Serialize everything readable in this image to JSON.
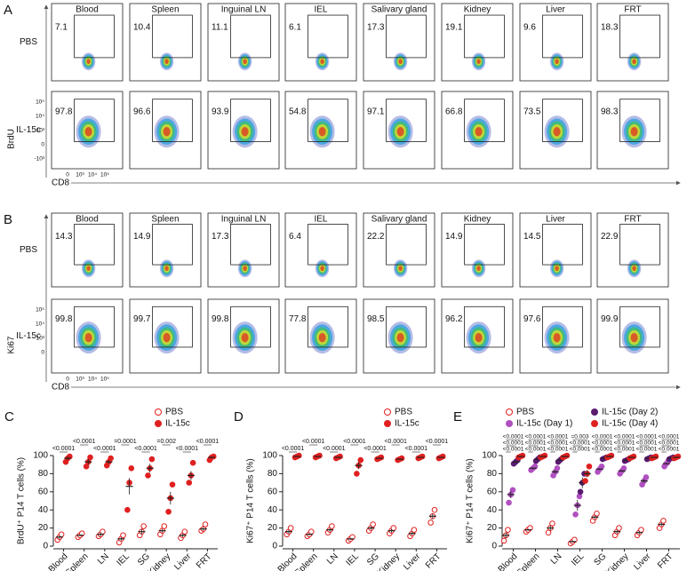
{
  "flow_panels": [
    {
      "label": "A",
      "columns": [
        "Blood",
        "Spleen",
        "Inguinal LN",
        "IEL",
        "Salivary gland",
        "Kidney",
        "Liver",
        "FRT"
      ],
      "rows": [
        "PBS",
        "IL-15c"
      ],
      "y_axis": "BrdU",
      "x_axis": "CD8",
      "gates": [
        [
          7.1,
          10.4,
          11.1,
          6.1,
          17.3,
          19.1,
          9.6,
          18.3
        ],
        [
          97.8,
          96.6,
          93.9,
          54.8,
          97.1,
          66.8,
          73.5,
          98.3
        ]
      ],
      "y_tick_labels": [
        "10⁵",
        "10⁴",
        "10³",
        "0",
        "-10³"
      ],
      "x_tick_labels": [
        "0",
        "10³",
        "10⁴",
        "10⁵"
      ]
    },
    {
      "label": "B",
      "columns": [
        "Blood",
        "Spleen",
        "Inguinal LN",
        "IEL",
        "Salivary gland",
        "Kidney",
        "Liver",
        "FRT"
      ],
      "rows": [
        "PBS",
        "IL-15c"
      ],
      "y_axis": "Ki67",
      "x_axis": "CD8",
      "gates": [
        [
          14.3,
          14.9,
          17.3,
          6.4,
          22.2,
          14.9,
          14.5,
          22.9
        ],
        [
          99.8,
          99.7,
          99.8,
          77.8,
          98.5,
          96.2,
          97.6,
          99.9
        ]
      ],
      "y_tick_labels": [
        "10⁵",
        "10⁴",
        "10³",
        "0"
      ],
      "x_tick_labels": [
        "0",
        "10³",
        "10⁴",
        "10⁵"
      ]
    }
  ],
  "chart_data": [
    {
      "label": "C",
      "type": "dot",
      "ylabel": "BrdU⁺ P14 T cells (%)",
      "categories": [
        "Blood",
        "Spleen",
        "LN",
        "IEL",
        "SG",
        "Kidney",
        "Liver",
        "FRT"
      ],
      "ylim": [
        0,
        100
      ],
      "yticks": [
        0,
        20,
        40,
        60,
        80,
        100
      ],
      "series": [
        {
          "name": "PBS",
          "color": "#e02020",
          "filled": false,
          "values": [
            10,
            12,
            13,
            8,
            16,
            17,
            12,
            19
          ],
          "errors": [
            2,
            1,
            2,
            2,
            3,
            2,
            2,
            2
          ],
          "points": [
            [
              7,
              10,
              13
            ],
            [
              10,
              12,
              14
            ],
            [
              11,
              13,
              16
            ],
            [
              4,
              8,
              12
            ],
            [
              12,
              16,
              22
            ],
            [
              13,
              17,
              22
            ],
            [
              9,
              12,
              16
            ],
            [
              17,
              19,
              24
            ]
          ]
        },
        {
          "name": "IL-15c",
          "color": "#e02020",
          "filled": true,
          "values": [
            97,
            93,
            93,
            66,
            86,
            53,
            78,
            98
          ],
          "errors": [
            2,
            3,
            2,
            9,
            5,
            7,
            5,
            1
          ],
          "points": [
            [
              93,
              97,
              99
            ],
            [
              88,
              93,
              98
            ],
            [
              89,
              93,
              97
            ],
            [
              40,
              70,
              86
            ],
            [
              78,
              86,
              96
            ],
            [
              38,
              53,
              68
            ],
            [
              70,
              78,
              92
            ],
            [
              95,
              98,
              99
            ]
          ]
        }
      ],
      "p_values": [
        "<0.0001",
        "<0.0001",
        "<0.0001",
        "=0.0001",
        "<0.0001",
        "=0.002",
        "<0.0001",
        "<0.0001"
      ]
    },
    {
      "label": "D",
      "type": "dot",
      "ylabel": "Ki67⁺ P14 T cells (%)",
      "categories": [
        "Blood",
        "Spleen",
        "LN",
        "IEL",
        "SG",
        "Kidney",
        "Liver",
        "FRT"
      ],
      "ylim": [
        0,
        100
      ],
      "yticks": [
        0,
        20,
        40,
        60,
        80,
        100
      ],
      "series": [
        {
          "name": "PBS",
          "color": "#e02020",
          "filled": false,
          "values": [
            16,
            13,
            18,
            8,
            20,
            17,
            14,
            33
          ],
          "errors": [
            2,
            1,
            2,
            1,
            2,
            2,
            2,
            3
          ],
          "points": [
            [
              13,
              16,
              20
            ],
            [
              11,
              13,
              16
            ],
            [
              15,
              18,
              22
            ],
            [
              6,
              8,
              10
            ],
            [
              17,
              20,
              24
            ],
            [
              14,
              17,
              20
            ],
            [
              11,
              14,
              18
            ],
            [
              26,
              33,
              40
            ]
          ]
        },
        {
          "name": "IL-15c",
          "color": "#e02020",
          "filled": true,
          "values": [
            99,
            99,
            98,
            89,
            97,
            96,
            98,
            98
          ],
          "errors": [
            0.5,
            0.5,
            0.5,
            4,
            0.5,
            0.5,
            0.5,
            0.5
          ],
          "points": [
            [
              98,
              99,
              100
            ],
            [
              98,
              99,
              100
            ],
            [
              97,
              98,
              99
            ],
            [
              80,
              89,
              95
            ],
            [
              96,
              97,
              98
            ],
            [
              95,
              96,
              97
            ],
            [
              97,
              98,
              99
            ],
            [
              97,
              98,
              99
            ]
          ]
        }
      ],
      "p_values": [
        "<0.0001",
        "<0.0001",
        "<0.0001",
        "<0.0001",
        "<0.0001",
        "<0.0001",
        "<0.0001",
        "<0.0001"
      ]
    },
    {
      "label": "E",
      "type": "dot",
      "ylabel": "Ki67⁺ P14 T cells (%)",
      "categories": [
        "Blood",
        "Spleen",
        "LN",
        "IEL",
        "SG",
        "Kidney",
        "Liver",
        "FRT"
      ],
      "ylim": [
        0,
        100
      ],
      "yticks": [
        0,
        20,
        40,
        60,
        80,
        100
      ],
      "series": [
        {
          "name": "PBS",
          "color": "#e02020",
          "filled": false,
          "values": [
            12,
            18,
            20,
            5,
            32,
            16,
            15,
            24
          ],
          "errors": [
            3,
            1,
            3,
            1,
            2,
            2,
            2,
            2
          ],
          "points": [
            [
              6,
              12,
              18
            ],
            [
              16,
              18,
              20
            ],
            [
              15,
              20,
              25
            ],
            [
              3,
              5,
              7
            ],
            [
              28,
              32,
              36
            ],
            [
              12,
              16,
              20
            ],
            [
              12,
              15,
              18
            ],
            [
              20,
              24,
              28
            ]
          ]
        },
        {
          "name": "IL-15c (Day 1)",
          "color": "#b050c0",
          "filled": true,
          "values": [
            57,
            86,
            82,
            45,
            85,
            83,
            72,
            91
          ],
          "errors": [
            4,
            1,
            2,
            6,
            1,
            1,
            2,
            1
          ],
          "points": [
            [
              48,
              57,
              62
            ],
            [
              84,
              86,
              88
            ],
            [
              78,
              82,
              86
            ],
            [
              35,
              45,
              55
            ],
            [
              82,
              85,
              88
            ],
            [
              80,
              83,
              86
            ],
            [
              68,
              72,
              76
            ],
            [
              88,
              91,
              94
            ]
          ]
        },
        {
          "name": "IL-15c (Day 2)",
          "color": "#5a1a70",
          "filled": true,
          "values": [
            93,
            96,
            95,
            70,
            97,
            95,
            97,
            97
          ],
          "errors": [
            1,
            1,
            1,
            6,
            1,
            1,
            1,
            1
          ],
          "points": [
            [
              91,
              93,
              95
            ],
            [
              94,
              96,
              98
            ],
            [
              93,
              95,
              97
            ],
            [
              60,
              70,
              80
            ],
            [
              96,
              97,
              98
            ],
            [
              94,
              95,
              96
            ],
            [
              96,
              97,
              98
            ],
            [
              96,
              97,
              98
            ]
          ]
        },
        {
          "name": "IL-15c (Day 4)",
          "color": "#e02020",
          "filled": true,
          "values": [
            99,
            99,
            99,
            80,
            99,
            98,
            98,
            98
          ],
          "errors": [
            0.5,
            0.5,
            0.5,
            4,
            0.5,
            0.5,
            0.5,
            0.5
          ],
          "points": [
            [
              98,
              99,
              100
            ],
            [
              98,
              99,
              100
            ],
            [
              98,
              99,
              100
            ],
            [
              72,
              80,
              88
            ],
            [
              98,
              99,
              100
            ],
            [
              97,
              98,
              99
            ],
            [
              97,
              98,
              99
            ],
            [
              97,
              98,
              99
            ]
          ]
        }
      ],
      "p_values": [
        [
          "<0.0001",
          "<0.0001",
          "<0.0001"
        ],
        [
          "<0.0001",
          "<0.0001",
          "<0.0001"
        ],
        [
          "<0.0001",
          "<0.0001",
          "<0.0001"
        ],
        [
          "<0.0001",
          "<0.0001",
          "=0.003"
        ],
        [
          "<0.0001",
          "<0.0001",
          "<0.0001"
        ],
        [
          "<0.0001",
          "<0.0001",
          "<0.0001"
        ],
        [
          "<0.0001",
          "<0.0001",
          "<0.0001"
        ],
        [
          "<0.0001",
          "<0.0001",
          "<0.0001"
        ]
      ]
    }
  ]
}
